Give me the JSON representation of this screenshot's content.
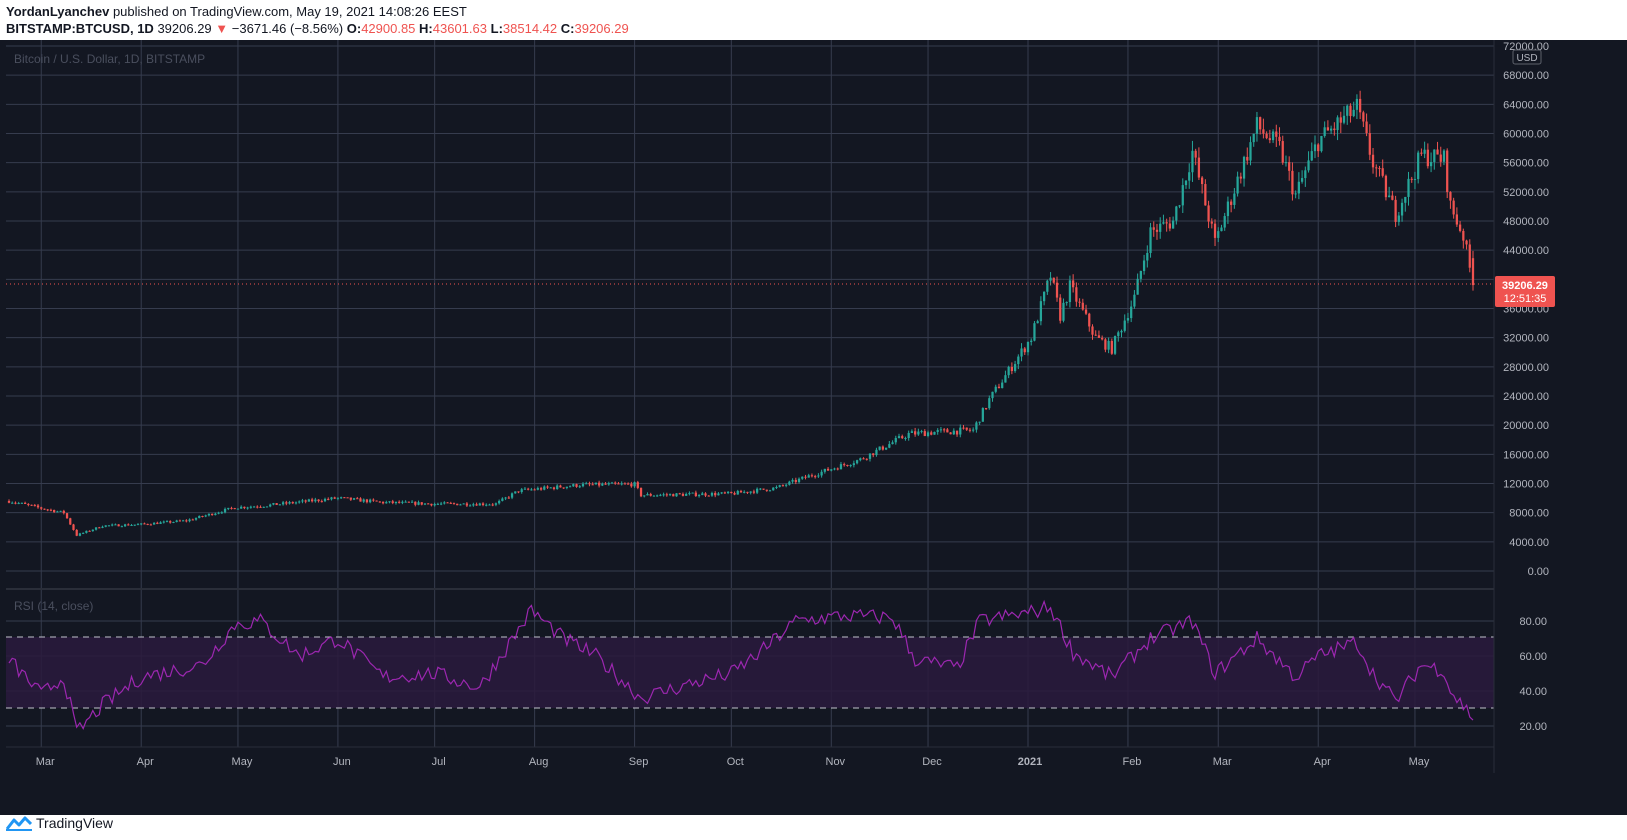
{
  "header": {
    "author": "YordanLyanchev",
    "published_text": "published on TradingView.com, May 19, 2021 14:08:26 EEST"
  },
  "ohlc": {
    "symbol": "BITSTAMP:BTCUSD, 1D",
    "last": "39206.29",
    "arrow": "▼",
    "change": "−3671.46 (−8.56%)",
    "o_label": "O:",
    "o": "42900.85",
    "h_label": "H:",
    "h": "43601.63",
    "l_label": "L:",
    "l": "38514.42",
    "c_label": "C:",
    "c": "39206.29"
  },
  "chart_title": "Bitcoin / U.S. Dollar, 1D, BITSTAMP",
  "rsi_title": "RSI (14, close)",
  "currency": "USD",
  "price_tag": {
    "price": "39206.29",
    "countdown": "12:51:35"
  },
  "footer": {
    "brand": "TradingView"
  },
  "colors": {
    "background": "#131722",
    "grid": "#363c4e",
    "up": "#26a69a",
    "down": "#ef5350",
    "rsi_line": "#9c27b0",
    "rsi_band": "#2a1a3d",
    "axis_text": "#b2b5be",
    "price_tag": "#ef5350"
  },
  "chart_data": [
    {
      "type": "candlestick",
      "title": "Bitcoin / U.S. Dollar, 1D, BITSTAMP",
      "x_ticks": [
        "Mar",
        "Apr",
        "May",
        "Jun",
        "Jul",
        "Aug",
        "Sep",
        "Oct",
        "Nov",
        "Dec",
        "2021",
        "Feb",
        "Mar",
        "Apr",
        "May"
      ],
      "y_ticks": [
        "72000.00",
        "68000.00",
        "64000.00",
        "60000.00",
        "56000.00",
        "52000.00",
        "48000.00",
        "44000.00",
        "40000.00",
        "36000.00",
        "32000.00",
        "28000.00",
        "24000.00",
        "20000.00",
        "16000.00",
        "12000.00",
        "8000.00",
        "4000.00",
        "0.00"
      ],
      "ylim": [
        0,
        72000
      ],
      "x_range": [
        "2020-02-20",
        "2021-05-19"
      ],
      "close_anchors": [
        [
          "2020-02-20",
          9600
        ],
        [
          "2020-03-01",
          8600
        ],
        [
          "2020-03-08",
          8000
        ],
        [
          "2020-03-12",
          4900
        ],
        [
          "2020-03-20",
          6200
        ],
        [
          "2020-04-01",
          6400
        ],
        [
          "2020-04-15",
          6900
        ],
        [
          "2020-04-30",
          8700
        ],
        [
          "2020-05-10",
          9000
        ],
        [
          "2020-06-01",
          10000
        ],
        [
          "2020-06-15",
          9400
        ],
        [
          "2020-07-01",
          9200
        ],
        [
          "2020-07-20",
          9200
        ],
        [
          "2020-07-27",
          11000
        ],
        [
          "2020-08-15",
          11800
        ],
        [
          "2020-09-01",
          11900
        ],
        [
          "2020-09-03",
          10400
        ],
        [
          "2020-10-01",
          10600
        ],
        [
          "2020-10-15",
          11400
        ],
        [
          "2020-10-25",
          13000
        ],
        [
          "2020-11-10",
          15300
        ],
        [
          "2020-11-25",
          18800
        ],
        [
          "2020-12-01",
          19000
        ],
        [
          "2020-12-15",
          19300
        ],
        [
          "2020-12-20",
          23500
        ],
        [
          "2021-01-02",
          32000
        ],
        [
          "2021-01-08",
          40500
        ],
        [
          "2021-01-11",
          35000
        ],
        [
          "2021-01-14",
          39000
        ],
        [
          "2021-01-22",
          32000
        ],
        [
          "2021-01-27",
          30500
        ],
        [
          "2021-02-03",
          37500
        ],
        [
          "2021-02-08",
          46500
        ],
        [
          "2021-02-15",
          48000
        ],
        [
          "2021-02-21",
          57500
        ],
        [
          "2021-02-28",
          45000
        ],
        [
          "2021-03-13",
          61000
        ],
        [
          "2021-03-20",
          58000
        ],
        [
          "2021-03-25",
          51500
        ],
        [
          "2021-04-01",
          59000
        ],
        [
          "2021-04-13",
          63500
        ],
        [
          "2021-04-18",
          56000
        ],
        [
          "2021-04-25",
          49000
        ],
        [
          "2021-05-03",
          57000
        ],
        [
          "2021-05-10",
          56500
        ],
        [
          "2021-05-12",
          50000
        ],
        [
          "2021-05-16",
          46000
        ],
        [
          "2021-05-19",
          39206.29
        ]
      ],
      "last_close": 39206.29
    },
    {
      "type": "line",
      "title": "RSI (14, close)",
      "y_ticks": [
        "80.00",
        "60.00",
        "40.00",
        "20.00"
      ],
      "ylim": [
        14,
        92
      ],
      "band": [
        30,
        70
      ],
      "rsi_anchors": [
        [
          "2020-02-20",
          58
        ],
        [
          "2020-03-01",
          38
        ],
        [
          "2020-03-08",
          48
        ],
        [
          "2020-03-12",
          16
        ],
        [
          "2020-03-20",
          32
        ],
        [
          "2020-04-01",
          48
        ],
        [
          "2020-04-20",
          55
        ],
        [
          "2020-04-30",
          78
        ],
        [
          "2020-05-08",
          80
        ],
        [
          "2020-05-20",
          60
        ],
        [
          "2020-06-01",
          70
        ],
        [
          "2020-06-15",
          48
        ],
        [
          "2020-07-01",
          50
        ],
        [
          "2020-07-15",
          42
        ],
        [
          "2020-07-27",
          75
        ],
        [
          "2020-07-31",
          86
        ],
        [
          "2020-08-10",
          70
        ],
        [
          "2020-08-20",
          60
        ],
        [
          "2020-09-03",
          36
        ],
        [
          "2020-09-20",
          45
        ],
        [
          "2020-10-01",
          50
        ],
        [
          "2020-10-10",
          62
        ],
        [
          "2020-10-21",
          80
        ],
        [
          "2020-11-05",
          83
        ],
        [
          "2020-11-20",
          82
        ],
        [
          "2020-11-27",
          58
        ],
        [
          "2020-12-10",
          53
        ],
        [
          "2020-12-17",
          80
        ],
        [
          "2021-01-02",
          85
        ],
        [
          "2021-01-08",
          88
        ],
        [
          "2021-01-15",
          62
        ],
        [
          "2021-01-27",
          48
        ],
        [
          "2021-02-08",
          70
        ],
        [
          "2021-02-21",
          80
        ],
        [
          "2021-02-28",
          50
        ],
        [
          "2021-03-13",
          70
        ],
        [
          "2021-03-25",
          48
        ],
        [
          "2021-04-01",
          60
        ],
        [
          "2021-04-13",
          68
        ],
        [
          "2021-04-18",
          50
        ],
        [
          "2021-04-25",
          34
        ],
        [
          "2021-05-03",
          55
        ],
        [
          "2021-05-10",
          52
        ],
        [
          "2021-05-12",
          40
        ],
        [
          "2021-05-19",
          25
        ]
      ]
    }
  ]
}
